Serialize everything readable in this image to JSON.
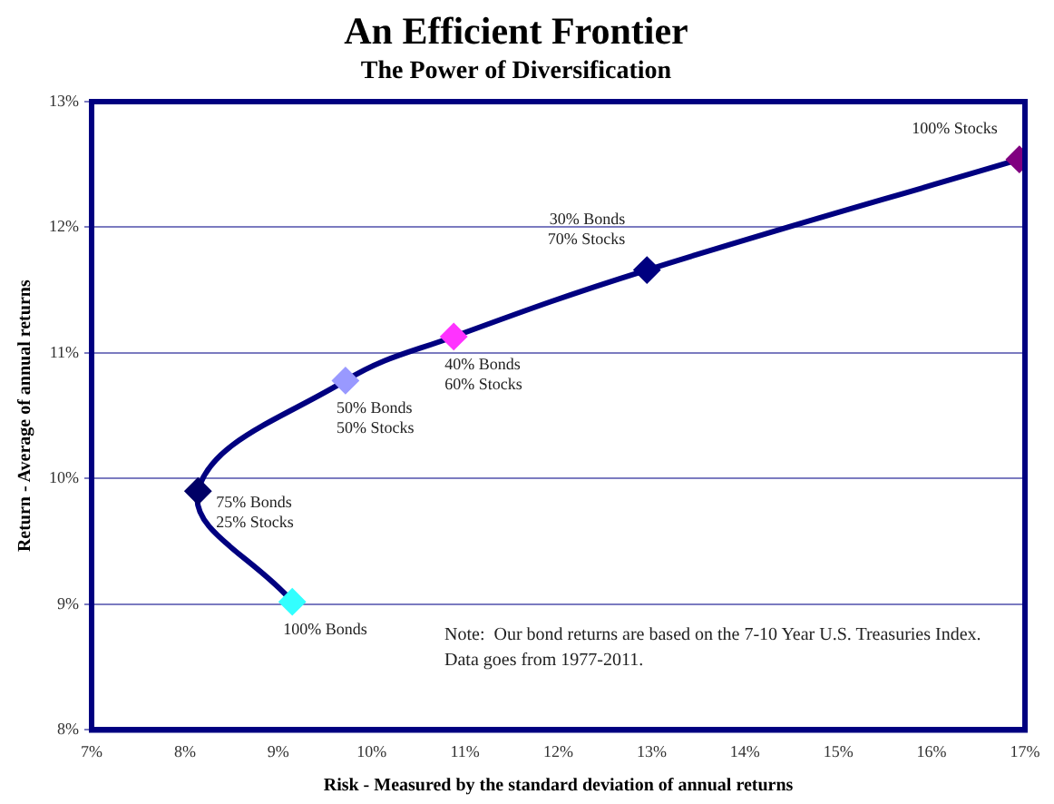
{
  "chart_data": {
    "type": "line",
    "title": "An Efficient Frontier",
    "subtitle": "The Power of Diversification",
    "xlabel": "Risk - Measured by the standard deviation of annual returns",
    "ylabel": "Return - Average of annual returns",
    "series": [
      {
        "color": "#000080",
        "x": [
          9.15,
          8.14,
          9.72,
          10.88,
          12.95,
          16.94
        ],
        "values": [
          9.02,
          9.9,
          10.78,
          11.13,
          11.66,
          12.54
        ],
        "colors": [
          "#33ffff",
          "#000066",
          "#9999ff",
          "#ff33ff",
          "#000080",
          "#800080"
        ]
      }
    ],
    "marker": "diamond",
    "line_style": "solid",
    "grid": "y",
    "legend": false,
    "xlim": [
      7,
      17
    ],
    "xticks": [
      {
        "value": 7,
        "label": "7%"
      },
      {
        "value": 8,
        "label": "8%"
      },
      {
        "value": 9,
        "label": "9%"
      },
      {
        "value": 10,
        "label": "10%"
      },
      {
        "value": 11,
        "label": "11%"
      },
      {
        "value": 12,
        "label": "12%"
      },
      {
        "value": 13,
        "label": "13%"
      },
      {
        "value": 14,
        "label": "14%"
      },
      {
        "value": 15,
        "label": "15%"
      },
      {
        "value": 16,
        "label": "16%"
      },
      {
        "value": 17,
        "label": "17%"
      }
    ],
    "ylim": [
      8,
      13
    ],
    "yticks": [
      {
        "value": 8,
        "label": "8%"
      },
      {
        "value": 9,
        "label": "9%"
      },
      {
        "value": 10,
        "label": "10%"
      },
      {
        "value": 11,
        "label": "11%"
      },
      {
        "value": 12,
        "label": "12%"
      },
      {
        "value": 13,
        "label": "13%"
      }
    ],
    "annotations": [
      {
        "text": "100% Bonds",
        "x": 9.15,
        "y": 9.02
      },
      {
        "text": "75% Bonds\n25% Stocks",
        "x": 8.14,
        "y": 9.9
      },
      {
        "text": "50% Bonds\n50% Stocks",
        "x": 9.72,
        "y": 10.78
      },
      {
        "text": "40% Bonds\n60% Stocks",
        "x": 10.88,
        "y": 11.13
      },
      {
        "text": "30% Bonds\n70% Stocks",
        "x": 12.95,
        "y": 11.66
      },
      {
        "text": "100% Stocks",
        "x": 16.94,
        "y": 12.54
      },
      "Note:  Our bond returns are based on the 7-10 Year U.S. Treasuries Index.  Data goes from 1977-2011."
    ]
  }
}
